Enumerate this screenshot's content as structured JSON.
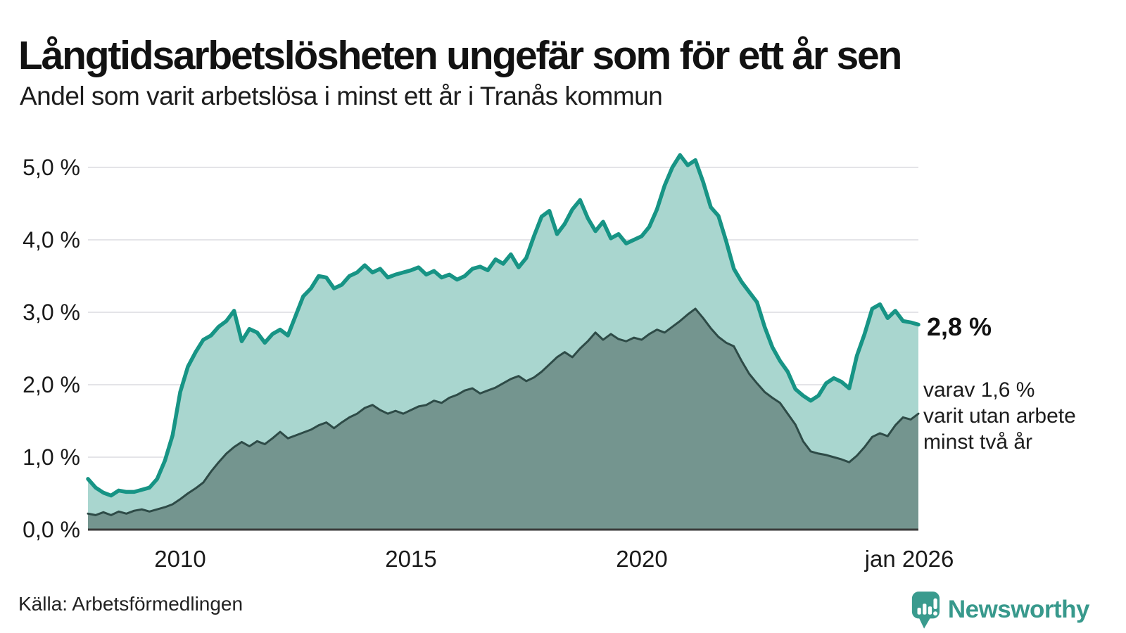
{
  "title": "Långtidsarbetslösheten ungefär som för ett år sen",
  "subtitle": "Andel som varit arbetslösa i minst ett år i Tranås kommun",
  "source": "Källa: Arbetsförmedlingen",
  "branding": {
    "name": "Newsworthy"
  },
  "annotations": {
    "latest_value": "2,8 %",
    "secondary_lines": [
      "varav 1,6 %",
      "varit utan arbete",
      "minst två år"
    ]
  },
  "colors": {
    "line_primary": "#179485",
    "fill_primary": "#a9d6cf",
    "line_secondary": "#2e4b47",
    "fill_secondary": "#74958f",
    "grid": "#e4e4e8",
    "axis": "#3a3a3a",
    "text": "#1a1a1a",
    "logo": "#3a9b8e"
  },
  "chart_data": {
    "type": "area",
    "title": "Långtidsarbetslösheten ungefär som för ett år sen",
    "subtitle": "Andel som varit arbetslösa i minst ett år i Tranås kommun",
    "xlabel": "",
    "ylabel": "",
    "x_range": [
      2008,
      2026
    ],
    "points_evenly_spaced": true,
    "ylim": [
      0,
      5.2
    ],
    "grid": true,
    "y_tick_labels": [
      "5,0 %",
      "4,0 %",
      "3,0 %",
      "2,0 %",
      "1,0 %",
      "0,0 %"
    ],
    "y_tick_values": [
      5,
      4,
      3,
      2,
      1,
      0
    ],
    "x_ticks": [
      {
        "year": 2010,
        "label": "2010"
      },
      {
        "year": 2015,
        "label": "2015"
      },
      {
        "year": 2020,
        "label": "2020"
      },
      {
        "year": 2026,
        "label": "jan 2026"
      }
    ],
    "series": [
      {
        "name": "arbetslösa minst ett år",
        "end_label": "2,8 %",
        "values": [
          0.7,
          0.58,
          0.51,
          0.47,
          0.54,
          0.52,
          0.52,
          0.55,
          0.58,
          0.7,
          0.95,
          1.3,
          1.9,
          2.25,
          2.45,
          2.62,
          2.68,
          2.8,
          2.88,
          3.02,
          2.6,
          2.77,
          2.72,
          2.58,
          2.7,
          2.76,
          2.68,
          2.95,
          3.22,
          3.33,
          3.5,
          3.48,
          3.33,
          3.38,
          3.5,
          3.55,
          3.65,
          3.55,
          3.6,
          3.48,
          3.52,
          3.55,
          3.58,
          3.62,
          3.52,
          3.57,
          3.48,
          3.52,
          3.45,
          3.5,
          3.6,
          3.63,
          3.58,
          3.73,
          3.67,
          3.8,
          3.62,
          3.75,
          4.05,
          4.32,
          4.4,
          4.08,
          4.22,
          4.42,
          4.55,
          4.3,
          4.12,
          4.25,
          4.02,
          4.08,
          3.95,
          4.0,
          4.05,
          4.18,
          4.42,
          4.75,
          5.0,
          5.17,
          5.03,
          5.1,
          4.8,
          4.45,
          4.33,
          3.98,
          3.6,
          3.42,
          3.28,
          3.14,
          2.8,
          2.52,
          2.33,
          2.18,
          1.94,
          1.85,
          1.78,
          1.85,
          2.02,
          2.09,
          2.04,
          1.95,
          2.4,
          2.7,
          3.05,
          3.11,
          2.92,
          3.02,
          2.88,
          2.86,
          2.83
        ]
      },
      {
        "name": "arbetslösa minst två år",
        "end_label": "1,6 %",
        "values": [
          0.22,
          0.2,
          0.24,
          0.2,
          0.25,
          0.22,
          0.26,
          0.28,
          0.25,
          0.28,
          0.31,
          0.35,
          0.42,
          0.5,
          0.57,
          0.65,
          0.8,
          0.93,
          1.05,
          1.14,
          1.21,
          1.15,
          1.22,
          1.18,
          1.26,
          1.35,
          1.26,
          1.3,
          1.34,
          1.38,
          1.44,
          1.48,
          1.4,
          1.48,
          1.55,
          1.6,
          1.68,
          1.72,
          1.65,
          1.6,
          1.64,
          1.6,
          1.65,
          1.7,
          1.72,
          1.78,
          1.75,
          1.82,
          1.86,
          1.92,
          1.95,
          1.88,
          1.92,
          1.96,
          2.02,
          2.08,
          2.12,
          2.05,
          2.1,
          2.18,
          2.28,
          2.38,
          2.45,
          2.38,
          2.5,
          2.6,
          2.72,
          2.62,
          2.7,
          2.63,
          2.6,
          2.65,
          2.62,
          2.7,
          2.76,
          2.72,
          2.8,
          2.88,
          2.97,
          3.05,
          2.92,
          2.78,
          2.66,
          2.58,
          2.53,
          2.33,
          2.15,
          2.02,
          1.9,
          1.82,
          1.75,
          1.6,
          1.45,
          1.22,
          1.08,
          1.05,
          1.03,
          1.0,
          0.97,
          0.93,
          1.02,
          1.14,
          1.28,
          1.33,
          1.29,
          1.44,
          1.55,
          1.52,
          1.6
        ]
      }
    ]
  }
}
